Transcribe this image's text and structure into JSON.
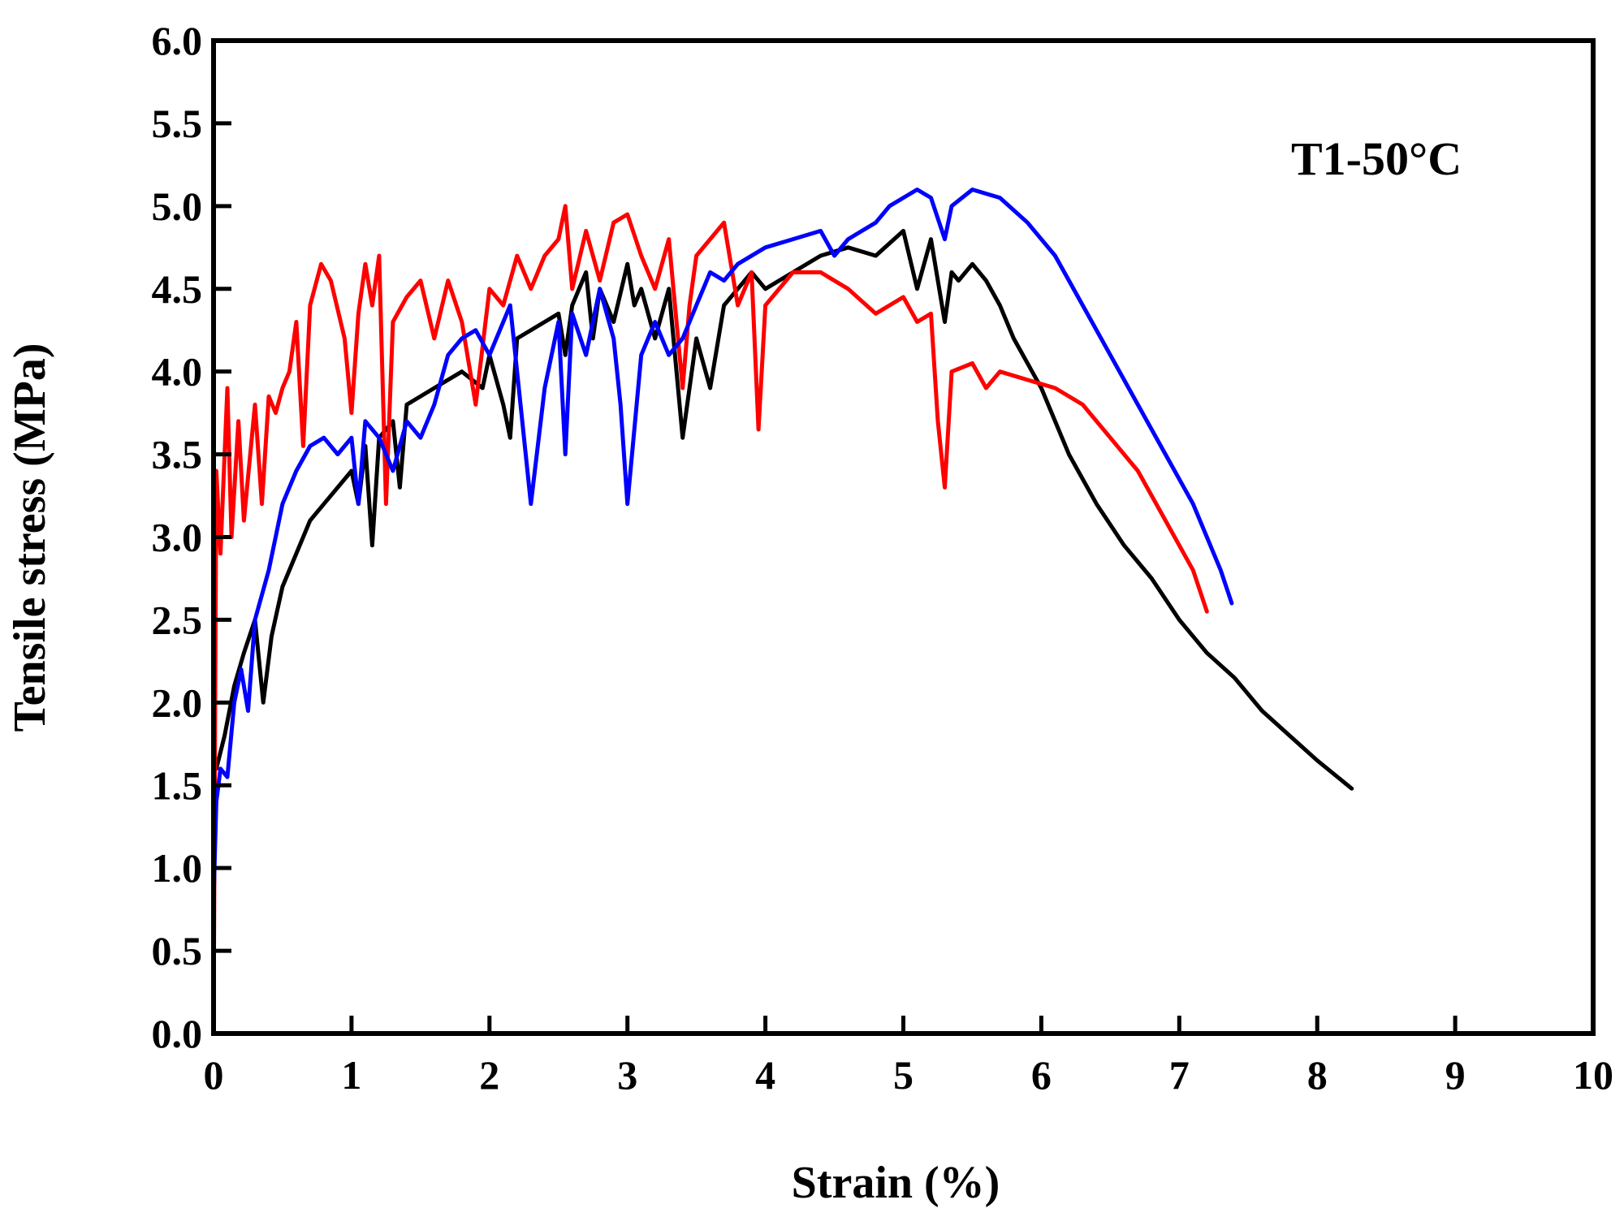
{
  "chart_data": {
    "type": "line",
    "title": "",
    "annotation": "T1-50°C",
    "xlabel": "Strain (%)",
    "ylabel": "Tensile stress (MPa)",
    "xlim": [
      0,
      10
    ],
    "ylim": [
      0,
      6
    ],
    "xticks": [
      "0",
      "1",
      "2",
      "3",
      "4",
      "5",
      "6",
      "7",
      "8",
      "9",
      "10"
    ],
    "yticks": [
      "0.0",
      "0.5",
      "1.0",
      "1.5",
      "2.0",
      "2.5",
      "3.0",
      "3.5",
      "4.0",
      "4.5",
      "5.0",
      "5.5",
      "6.0"
    ],
    "grid": false,
    "legend": "none",
    "series": [
      {
        "color": "#000000",
        "points": [
          [
            0.02,
            1.6
          ],
          [
            0.08,
            1.8
          ],
          [
            0.15,
            2.1
          ],
          [
            0.22,
            2.3
          ],
          [
            0.3,
            2.5
          ],
          [
            0.36,
            2.0
          ],
          [
            0.42,
            2.4
          ],
          [
            0.5,
            2.7
          ],
          [
            0.6,
            2.9
          ],
          [
            0.7,
            3.1
          ],
          [
            0.8,
            3.2
          ],
          [
            0.9,
            3.3
          ],
          [
            1.0,
            3.4
          ],
          [
            1.05,
            3.2
          ],
          [
            1.1,
            3.55
          ],
          [
            1.15,
            2.95
          ],
          [
            1.2,
            3.6
          ],
          [
            1.3,
            3.7
          ],
          [
            1.35,
            3.3
          ],
          [
            1.4,
            3.8
          ],
          [
            1.6,
            3.9
          ],
          [
            1.8,
            4.0
          ],
          [
            1.95,
            3.9
          ],
          [
            2.0,
            4.1
          ],
          [
            2.1,
            3.8
          ],
          [
            2.15,
            3.6
          ],
          [
            2.2,
            4.2
          ],
          [
            2.4,
            4.3
          ],
          [
            2.5,
            4.35
          ],
          [
            2.55,
            4.1
          ],
          [
            2.6,
            4.4
          ],
          [
            2.7,
            4.6
          ],
          [
            2.75,
            4.2
          ],
          [
            2.8,
            4.5
          ],
          [
            2.9,
            4.3
          ],
          [
            3.0,
            4.65
          ],
          [
            3.05,
            4.4
          ],
          [
            3.1,
            4.5
          ],
          [
            3.2,
            4.2
          ],
          [
            3.3,
            4.5
          ],
          [
            3.4,
            3.6
          ],
          [
            3.5,
            4.2
          ],
          [
            3.6,
            3.9
          ],
          [
            3.7,
            4.4
          ],
          [
            3.8,
            4.5
          ],
          [
            3.9,
            4.6
          ],
          [
            4.0,
            4.5
          ],
          [
            4.2,
            4.6
          ],
          [
            4.4,
            4.7
          ],
          [
            4.6,
            4.75
          ],
          [
            4.8,
            4.7
          ],
          [
            5.0,
            4.85
          ],
          [
            5.1,
            4.5
          ],
          [
            5.2,
            4.8
          ],
          [
            5.3,
            4.3
          ],
          [
            5.35,
            4.6
          ],
          [
            5.4,
            4.55
          ],
          [
            5.5,
            4.65
          ],
          [
            5.6,
            4.55
          ],
          [
            5.7,
            4.4
          ],
          [
            5.8,
            4.2
          ],
          [
            6.0,
            3.9
          ],
          [
            6.2,
            3.5
          ],
          [
            6.4,
            3.2
          ],
          [
            6.6,
            2.95
          ],
          [
            6.8,
            2.75
          ],
          [
            7.0,
            2.5
          ],
          [
            7.2,
            2.3
          ],
          [
            7.4,
            2.15
          ],
          [
            7.6,
            1.95
          ],
          [
            7.8,
            1.8
          ],
          [
            8.0,
            1.65
          ],
          [
            8.25,
            1.48
          ]
        ]
      },
      {
        "color": "#ff0000",
        "points": [
          [
            0.0,
            0.0
          ],
          [
            0.02,
            3.4
          ],
          [
            0.05,
            2.9
          ],
          [
            0.08,
            3.5
          ],
          [
            0.1,
            3.9
          ],
          [
            0.13,
            3.0
          ],
          [
            0.18,
            3.7
          ],
          [
            0.22,
            3.1
          ],
          [
            0.3,
            3.8
          ],
          [
            0.35,
            3.2
          ],
          [
            0.4,
            3.85
          ],
          [
            0.45,
            3.75
          ],
          [
            0.5,
            3.9
          ],
          [
            0.55,
            4.0
          ],
          [
            0.6,
            4.3
          ],
          [
            0.65,
            3.55
          ],
          [
            0.7,
            4.4
          ],
          [
            0.78,
            4.65
          ],
          [
            0.85,
            4.55
          ],
          [
            0.95,
            4.2
          ],
          [
            1.0,
            3.75
          ],
          [
            1.05,
            4.35
          ],
          [
            1.1,
            4.65
          ],
          [
            1.15,
            4.4
          ],
          [
            1.2,
            4.7
          ],
          [
            1.25,
            3.2
          ],
          [
            1.3,
            4.3
          ],
          [
            1.4,
            4.45
          ],
          [
            1.5,
            4.55
          ],
          [
            1.6,
            4.2
          ],
          [
            1.7,
            4.55
          ],
          [
            1.8,
            4.3
          ],
          [
            1.9,
            3.8
          ],
          [
            2.0,
            4.5
          ],
          [
            2.1,
            4.4
          ],
          [
            2.2,
            4.7
          ],
          [
            2.3,
            4.5
          ],
          [
            2.4,
            4.7
          ],
          [
            2.5,
            4.8
          ],
          [
            2.55,
            5.0
          ],
          [
            2.6,
            4.5
          ],
          [
            2.7,
            4.85
          ],
          [
            2.8,
            4.55
          ],
          [
            2.9,
            4.9
          ],
          [
            3.0,
            4.95
          ],
          [
            3.1,
            4.7
          ],
          [
            3.2,
            4.5
          ],
          [
            3.3,
            4.8
          ],
          [
            3.4,
            3.9
          ],
          [
            3.45,
            4.4
          ],
          [
            3.5,
            4.7
          ],
          [
            3.6,
            4.8
          ],
          [
            3.7,
            4.9
          ],
          [
            3.8,
            4.4
          ],
          [
            3.9,
            4.6
          ],
          [
            3.95,
            3.65
          ],
          [
            4.0,
            4.4
          ],
          [
            4.2,
            4.6
          ],
          [
            4.4,
            4.6
          ],
          [
            4.6,
            4.5
          ],
          [
            4.8,
            4.35
          ],
          [
            5.0,
            4.45
          ],
          [
            5.1,
            4.3
          ],
          [
            5.2,
            4.35
          ],
          [
            5.25,
            3.7
          ],
          [
            5.3,
            3.3
          ],
          [
            5.35,
            4.0
          ],
          [
            5.5,
            4.05
          ],
          [
            5.6,
            3.9
          ],
          [
            5.7,
            4.0
          ],
          [
            5.9,
            3.95
          ],
          [
            6.1,
            3.9
          ],
          [
            6.3,
            3.8
          ],
          [
            6.5,
            3.6
          ],
          [
            6.7,
            3.4
          ],
          [
            6.9,
            3.1
          ],
          [
            7.1,
            2.8
          ],
          [
            7.2,
            2.55
          ]
        ]
      },
      {
        "color": "#0000ff",
        "points": [
          [
            0.0,
            0.8
          ],
          [
            0.02,
            1.4
          ],
          [
            0.05,
            1.6
          ],
          [
            0.1,
            1.55
          ],
          [
            0.15,
            2.0
          ],
          [
            0.2,
            2.2
          ],
          [
            0.25,
            1.95
          ],
          [
            0.3,
            2.5
          ],
          [
            0.4,
            2.8
          ],
          [
            0.5,
            3.2
          ],
          [
            0.6,
            3.4
          ],
          [
            0.7,
            3.55
          ],
          [
            0.8,
            3.6
          ],
          [
            0.9,
            3.5
          ],
          [
            1.0,
            3.6
          ],
          [
            1.05,
            3.2
          ],
          [
            1.1,
            3.7
          ],
          [
            1.2,
            3.6
          ],
          [
            1.3,
            3.4
          ],
          [
            1.4,
            3.7
          ],
          [
            1.5,
            3.6
          ],
          [
            1.6,
            3.8
          ],
          [
            1.7,
            4.1
          ],
          [
            1.8,
            4.2
          ],
          [
            1.9,
            4.25
          ],
          [
            2.0,
            4.1
          ],
          [
            2.1,
            4.3
          ],
          [
            2.15,
            4.4
          ],
          [
            2.2,
            4.0
          ],
          [
            2.3,
            3.2
          ],
          [
            2.4,
            3.9
          ],
          [
            2.5,
            4.3
          ],
          [
            2.55,
            3.5
          ],
          [
            2.6,
            4.35
          ],
          [
            2.7,
            4.1
          ],
          [
            2.8,
            4.5
          ],
          [
            2.9,
            4.2
          ],
          [
            2.95,
            3.8
          ],
          [
            3.0,
            3.2
          ],
          [
            3.1,
            4.1
          ],
          [
            3.2,
            4.3
          ],
          [
            3.3,
            4.1
          ],
          [
            3.4,
            4.2
          ],
          [
            3.5,
            4.4
          ],
          [
            3.6,
            4.6
          ],
          [
            3.7,
            4.55
          ],
          [
            3.8,
            4.65
          ],
          [
            4.0,
            4.75
          ],
          [
            4.2,
            4.8
          ],
          [
            4.4,
            4.85
          ],
          [
            4.5,
            4.7
          ],
          [
            4.6,
            4.8
          ],
          [
            4.7,
            4.85
          ],
          [
            4.8,
            4.9
          ],
          [
            4.9,
            5.0
          ],
          [
            5.0,
            5.05
          ],
          [
            5.1,
            5.1
          ],
          [
            5.2,
            5.05
          ],
          [
            5.3,
            4.8
          ],
          [
            5.35,
            5.0
          ],
          [
            5.5,
            5.1
          ],
          [
            5.7,
            5.05
          ],
          [
            5.9,
            4.9
          ],
          [
            6.1,
            4.7
          ],
          [
            6.3,
            4.4
          ],
          [
            6.5,
            4.1
          ],
          [
            6.7,
            3.8
          ],
          [
            6.9,
            3.5
          ],
          [
            7.1,
            3.2
          ],
          [
            7.3,
            2.8
          ],
          [
            7.38,
            2.6
          ]
        ]
      }
    ]
  }
}
